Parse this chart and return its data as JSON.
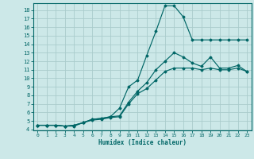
{
  "xlabel": "Humidex (Indice chaleur)",
  "bg_color": "#cce8e8",
  "grid_color": "#aacccc",
  "line_color": "#006666",
  "xlim": [
    -0.5,
    23.5
  ],
  "ylim": [
    3.9,
    18.8
  ],
  "xticks": [
    0,
    1,
    2,
    3,
    4,
    5,
    6,
    7,
    8,
    9,
    10,
    11,
    12,
    13,
    14,
    15,
    16,
    17,
    18,
    19,
    20,
    21,
    22,
    23
  ],
  "yticks": [
    4,
    5,
    6,
    7,
    8,
    9,
    10,
    11,
    12,
    13,
    14,
    15,
    16,
    17,
    18
  ],
  "series": [
    {
      "x": [
        0,
        1,
        2,
        3,
        4,
        5,
        6,
        7,
        8,
        9,
        10,
        11,
        12,
        13,
        14,
        15,
        16,
        17,
        18,
        19,
        20,
        21,
        22,
        23
      ],
      "y": [
        4.5,
        4.5,
        4.5,
        4.4,
        4.4,
        4.8,
        5.1,
        5.2,
        5.4,
        5.5,
        7.0,
        8.2,
        8.8,
        9.8,
        10.8,
        11.2,
        11.2,
        11.2,
        11.0,
        11.2,
        11.0,
        11.0,
        11.2,
        10.8
      ]
    },
    {
      "x": [
        0,
        1,
        2,
        3,
        4,
        5,
        6,
        7,
        8,
        9,
        10,
        11,
        12,
        13,
        14,
        15,
        16,
        17,
        18,
        19,
        20,
        21,
        22,
        23
      ],
      "y": [
        4.5,
        4.5,
        4.5,
        4.4,
        4.5,
        4.8,
        5.2,
        5.3,
        5.5,
        5.6,
        7.2,
        8.5,
        9.5,
        11.0,
        12.0,
        13.0,
        12.5,
        11.8,
        11.4,
        12.5,
        11.2,
        11.2,
        11.5,
        10.8
      ]
    },
    {
      "x": [
        0,
        1,
        2,
        3,
        4,
        5,
        6,
        7,
        8,
        9,
        10,
        11,
        12,
        13,
        14,
        15,
        16,
        17,
        18,
        19,
        20,
        21,
        22,
        23
      ],
      "y": [
        4.5,
        4.5,
        4.5,
        4.4,
        4.5,
        4.8,
        5.2,
        5.3,
        5.5,
        6.5,
        9.0,
        9.8,
        12.7,
        15.5,
        18.5,
        18.5,
        17.2,
        14.5,
        14.5,
        14.5,
        14.5,
        14.5,
        14.5,
        14.5
      ]
    }
  ]
}
